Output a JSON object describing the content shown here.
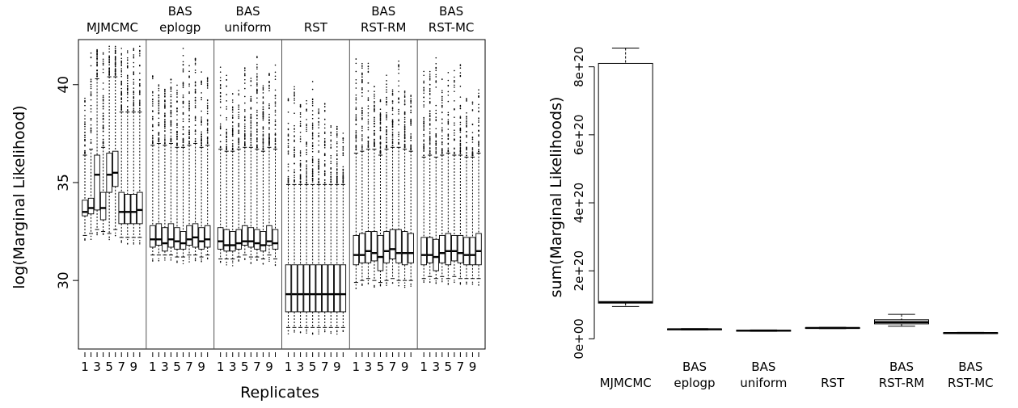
{
  "chart_data": [
    {
      "type": "boxplot",
      "ylabel": "log(Marginal Likelihood)",
      "xlabel": "Replicates",
      "ylim": [
        26.5,
        42.3
      ],
      "yticks": [
        30,
        35,
        40
      ],
      "xticks": [
        "1",
        "3",
        "5",
        "7",
        "9"
      ],
      "groups": [
        {
          "label": [
            "MJMCMC"
          ],
          "boxes": [
            [
              32.3,
              33.3,
              33.5,
              34.1,
              36.4
            ],
            [
              32.4,
              33.4,
              33.7,
              34.2,
              36.7
            ],
            [
              32.6,
              33.6,
              35.4,
              36.4,
              40.3
            ],
            [
              32.5,
              33.1,
              33.7,
              34.5,
              36.8
            ],
            [
              32.4,
              34.5,
              35.4,
              36.5,
              40.4
            ],
            [
              32.6,
              34.8,
              35.5,
              36.6,
              40.4
            ],
            [
              32.2,
              32.9,
              33.5,
              34.5,
              38.6
            ],
            [
              32.2,
              32.9,
              33.5,
              34.4,
              38.6
            ],
            [
              32.2,
              32.9,
              33.5,
              34.4,
              38.6
            ],
            [
              32.2,
              32.9,
              33.6,
              34.5,
              38.6
            ]
          ]
        },
        {
          "label": [
            "BAS",
            "eplogp"
          ],
          "boxes": [
            [
              31.3,
              31.7,
              32.1,
              32.8,
              36.9
            ],
            [
              31.3,
              31.8,
              32.1,
              32.9,
              37.0
            ],
            [
              31.3,
              31.5,
              31.9,
              32.7,
              36.9
            ],
            [
              31.3,
              31.7,
              32.1,
              32.9,
              37.0
            ],
            [
              31.2,
              31.6,
              32.0,
              32.7,
              36.8
            ],
            [
              31.2,
              31.6,
              31.9,
              32.5,
              36.8
            ],
            [
              31.3,
              31.8,
              32.1,
              32.8,
              36.9
            ],
            [
              31.3,
              31.7,
              32.2,
              32.9,
              37.0
            ],
            [
              31.2,
              31.6,
              32.0,
              32.7,
              36.8
            ],
            [
              31.3,
              31.7,
              32.1,
              32.8,
              36.9
            ]
          ]
        },
        {
          "label": [
            "BAS",
            "uniform"
          ],
          "boxes": [
            [
              31.1,
              31.6,
              32.0,
              32.7,
              36.7
            ],
            [
              31.1,
              31.5,
              31.8,
              32.6,
              36.6
            ],
            [
              31.1,
              31.5,
              31.8,
              32.5,
              36.6
            ],
            [
              31.2,
              31.6,
              31.9,
              32.6,
              36.7
            ],
            [
              31.3,
              31.8,
              32.0,
              32.8,
              36.8
            ],
            [
              31.2,
              31.7,
              32.0,
              32.7,
              36.8
            ],
            [
              31.2,
              31.6,
              31.9,
              32.6,
              36.7
            ],
            [
              31.1,
              31.5,
              31.8,
              32.5,
              36.6
            ],
            [
              31.3,
              31.8,
              32.0,
              32.8,
              36.8
            ],
            [
              31.1,
              31.6,
              31.9,
              32.6,
              36.7
            ]
          ]
        },
        {
          "label": [
            "RST"
          ],
          "boxes": [
            [
              27.6,
              28.4,
              29.3,
              30.8,
              34.9
            ],
            [
              27.6,
              28.4,
              29.3,
              30.8,
              34.9
            ],
            [
              27.6,
              28.4,
              29.3,
              30.8,
              34.9
            ],
            [
              27.6,
              28.4,
              29.3,
              30.8,
              34.9
            ],
            [
              27.6,
              28.4,
              29.3,
              30.8,
              34.9
            ],
            [
              27.6,
              28.4,
              29.3,
              30.8,
              34.9
            ],
            [
              27.6,
              28.4,
              29.3,
              30.8,
              34.9
            ],
            [
              27.6,
              28.4,
              29.3,
              30.8,
              34.9
            ],
            [
              27.6,
              28.4,
              29.3,
              30.8,
              34.9
            ],
            [
              27.6,
              28.4,
              29.3,
              30.8,
              34.9
            ]
          ]
        },
        {
          "label": [
            "BAS",
            "RST-RM"
          ],
          "boxes": [
            [
              29.9,
              30.8,
              31.3,
              32.3,
              36.5
            ],
            [
              30.0,
              30.9,
              31.3,
              32.4,
              36.6
            ],
            [
              30.1,
              30.9,
              31.5,
              32.5,
              36.7
            ],
            [
              30.0,
              31.0,
              31.4,
              32.5,
              36.7
            ],
            [
              29.9,
              30.5,
              31.2,
              32.3,
              36.4
            ],
            [
              30.0,
              30.9,
              31.5,
              32.5,
              36.7
            ],
            [
              30.1,
              31.1,
              31.6,
              32.6,
              36.8
            ],
            [
              30.0,
              30.9,
              31.4,
              32.6,
              36.8
            ],
            [
              30.0,
              30.8,
              31.4,
              32.5,
              36.7
            ],
            [
              30.0,
              30.9,
              31.4,
              32.4,
              36.6
            ]
          ]
        },
        {
          "label": [
            "BAS",
            "RST-MC"
          ],
          "boxes": [
            [
              30.1,
              30.8,
              31.3,
              32.2,
              36.3
            ],
            [
              30.2,
              30.9,
              31.3,
              32.2,
              36.4
            ],
            [
              30.1,
              30.5,
              31.2,
              32.1,
              36.3
            ],
            [
              30.2,
              30.9,
              31.4,
              32.3,
              36.4
            ],
            [
              30.1,
              30.8,
              31.5,
              32.4,
              36.5
            ],
            [
              30.2,
              31.0,
              31.5,
              32.3,
              36.4
            ],
            [
              30.1,
              30.9,
              31.4,
              32.3,
              36.4
            ],
            [
              30.1,
              30.8,
              31.3,
              32.2,
              36.3
            ],
            [
              30.1,
              30.8,
              31.3,
              32.2,
              36.3
            ],
            [
              30.1,
              30.8,
              31.5,
              32.4,
              36.5
            ]
          ]
        }
      ]
    },
    {
      "type": "boxplot",
      "ylabel": "sum(Marginal Likelihoods)",
      "ylim": [
        -3e+19,
        8.8e+20
      ],
      "yticks": [
        0,
        2e+20,
        4e+20,
        6e+20,
        8e+20
      ],
      "ytick_labels": [
        "0e+00",
        "2e+20",
        "4e+20",
        "6e+20",
        "8e+20"
      ],
      "categories": [
        [
          "MJMCMC"
        ],
        [
          "BAS",
          "eplogp"
        ],
        [
          "BAS",
          "uniform"
        ],
        [
          "RST"
        ],
        [
          "BAS",
          "RST-RM"
        ],
        [
          "BAS",
          "RST-MC"
        ]
      ],
      "boxes": [
        [
          9.5e+19,
          1.05e+20,
          1.08e+20,
          8.1e+20,
          8.55e+20
        ],
        [
          2.6e+19,
          2.7e+19,
          2.8e+19,
          2.9e+19,
          3e+19
        ],
        [
          2.2e+19,
          2.3e+19,
          2.4e+19,
          2.5e+19,
          2.6e+19
        ],
        [
          3e+19,
          3.1e+19,
          3.2e+19,
          3.3e+19,
          3.4e+19
        ],
        [
          3.7e+19,
          4.4e+19,
          4.9e+19,
          5.6e+19,
          7.2e+19
        ],
        [
          1.5e+19,
          1.6e+19,
          1.7e+19,
          1.8e+19,
          1.9e+19
        ]
      ]
    }
  ]
}
